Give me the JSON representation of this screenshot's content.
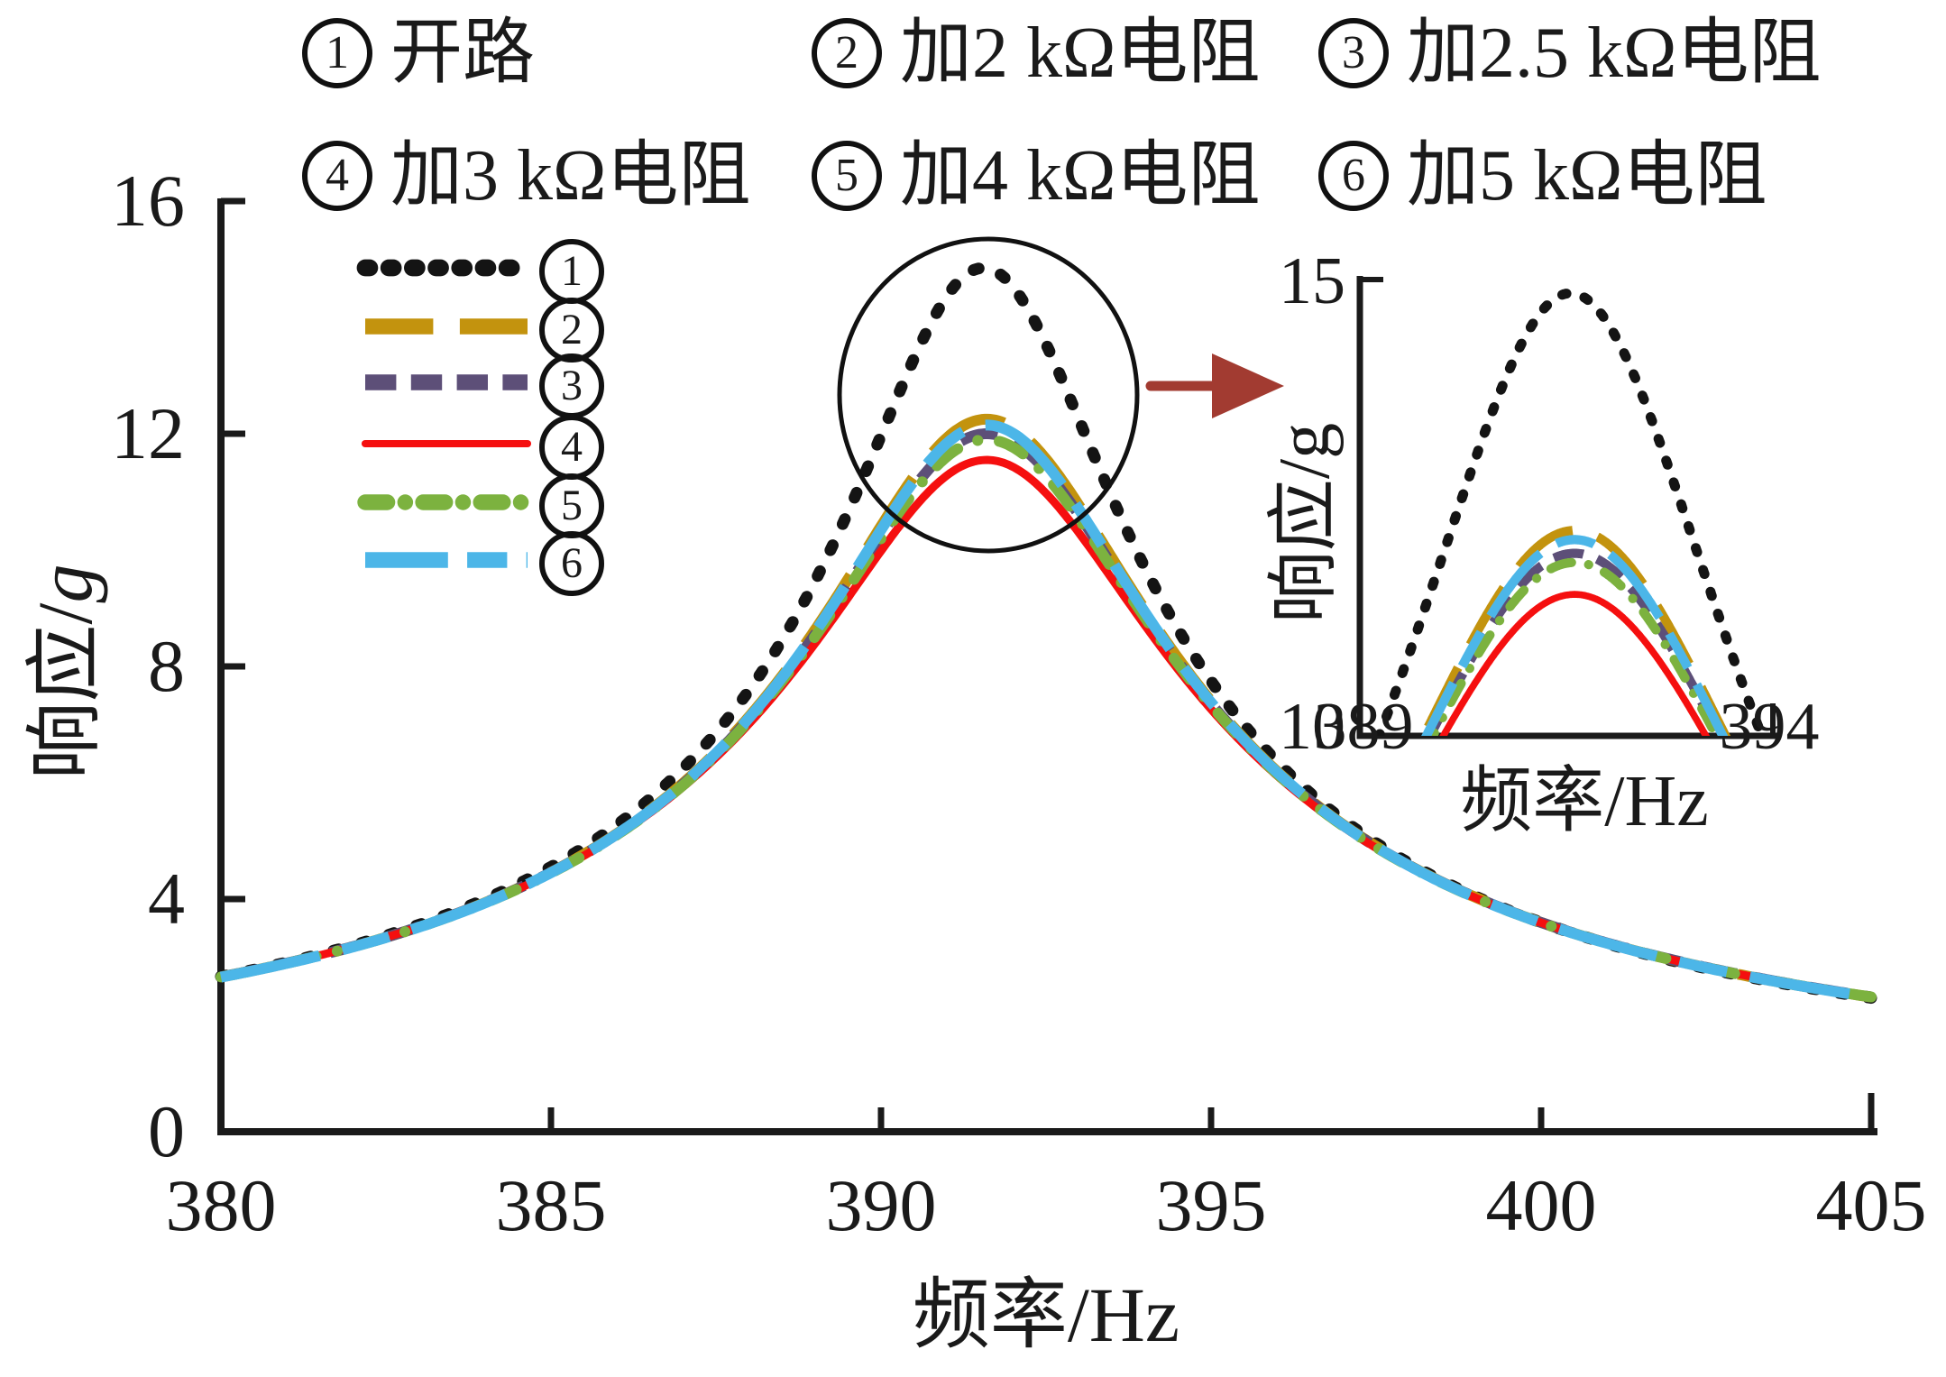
{
  "figure": {
    "header": {
      "items": [
        {
          "num": "1",
          "label": "开路"
        },
        {
          "num": "2",
          "label": "加2 kΩ电阻"
        },
        {
          "num": "3",
          "label": "加2.5 kΩ电阻"
        },
        {
          "num": "4",
          "label": "加3 kΩ电阻"
        },
        {
          "num": "5",
          "label": "加4 kΩ电阻"
        },
        {
          "num": "6",
          "label": "加5 kΩ电阻"
        }
      ]
    },
    "legend": {
      "nums": [
        "1",
        "2",
        "3",
        "4",
        "5",
        "6"
      ],
      "position": "upper-left-inside"
    }
  },
  "chart_data": {
    "type": "line",
    "title": "",
    "xlabel": "频率/Hz",
    "ylabel_prefix": "响应/",
    "ylabel_unit": "g",
    "grid": false,
    "main_axis": {
      "xlim": [
        380,
        405
      ],
      "ylim": [
        0,
        16
      ],
      "xticks": [
        380,
        385,
        390,
        395,
        400,
        405
      ],
      "yticks": [
        0,
        4,
        8,
        12,
        16
      ]
    },
    "inset_axis": {
      "xlim": [
        389,
        394
      ],
      "ylim": [
        10,
        15
      ],
      "xticks": [
        389,
        394
      ],
      "yticks": [
        10,
        15
      ],
      "xlabel": "频率/Hz",
      "ylabel_prefix": "响应/",
      "ylabel_unit": "g"
    },
    "model": "lorentzian amplitude: y(f) = peak / sqrt(1 + ((f - f0)/gamma)^2), tails of all curves coincide (~2.7 g at 380 Hz, ~2.2 g at 405 Hz)",
    "series": [
      {
        "id": "s1",
        "num": "1",
        "name": "开路",
        "color": "#141414",
        "style": "dotted",
        "f0": 391.55,
        "peak": 14.85,
        "gamma": 2.11
      },
      {
        "id": "s2",
        "num": "2",
        "name": "加2 kΩ电阻",
        "color": "#c3930e",
        "style": "long-dash",
        "f0": 391.6,
        "peak": 12.25,
        "gamma": 2.58
      },
      {
        "id": "s3",
        "num": "3",
        "name": "加2.5 kΩ电阻",
        "color": "#5d4f78",
        "style": "dash",
        "f0": 391.6,
        "peak": 12.0,
        "gamma": 2.64
      },
      {
        "id": "s4",
        "num": "4",
        "name": "加3 kΩ电阻",
        "color": "#f50f0f",
        "style": "solid",
        "f0": 391.6,
        "peak": 11.55,
        "gamma": 2.75
      },
      {
        "id": "s5",
        "num": "5",
        "name": "加4 kΩ电阻",
        "color": "#7cb23f",
        "style": "dash-dot",
        "f0": 391.6,
        "peak": 11.9,
        "gamma": 2.66
      },
      {
        "id": "s6",
        "num": "6",
        "name": "加5 kΩ电阻",
        "color": "#4cb6e8",
        "style": "long-short-dash",
        "f0": 391.6,
        "peak": 12.15,
        "gamma": 2.6
      }
    ],
    "annotations": {
      "circle_note": "peak region circled, magnified in inset",
      "arrow_color": "#a23b31",
      "axis_color": "#1a1a1a"
    }
  }
}
